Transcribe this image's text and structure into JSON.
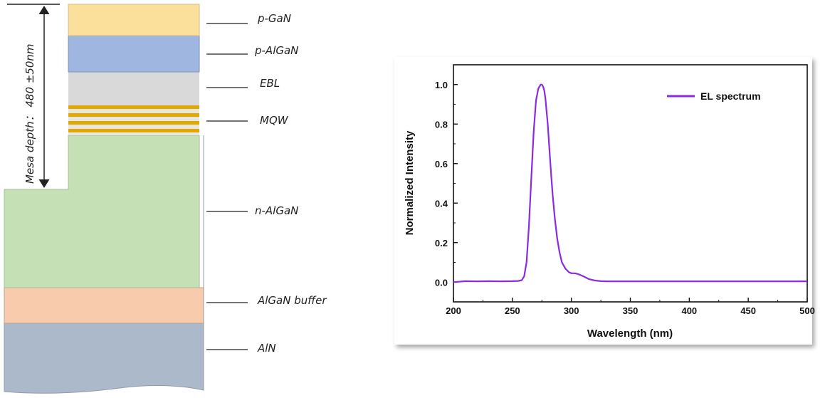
{
  "diagram": {
    "depth_annotation": "Mesa depth： 480 ±50nm",
    "layers": [
      {
        "label": "p-GaN",
        "color": "#fbe09b"
      },
      {
        "label": "p-AlGaN",
        "color": "#9fb6e0"
      },
      {
        "label": "EBL",
        "color": "#d9d9d9"
      },
      {
        "label": "MQW",
        "color": "#e0a800"
      },
      {
        "label": "n-AlGaN",
        "color": "#c5e0b4"
      },
      {
        "label": "AlGaN buffer",
        "color": "#f8cbad"
      },
      {
        "label": "AlN",
        "color": "#acb9ca"
      }
    ]
  },
  "chart_data": {
    "type": "line",
    "title": "",
    "xlabel": "Wavelength (nm)",
    "ylabel": "Normalized Intensity",
    "xlim": [
      200,
      500
    ],
    "ylim": [
      -0.1,
      1.1
    ],
    "xticks": [
      "200",
      "250",
      "300",
      "350",
      "400",
      "450",
      "500"
    ],
    "yticks": [
      "0.0",
      "0.2",
      "0.4",
      "0.6",
      "0.8",
      "1.0"
    ],
    "grid": false,
    "legend_position": "top-right",
    "series": [
      {
        "name": "EL spectrum",
        "color": "#8a2be2",
        "x": [
          200,
          210,
          220,
          230,
          240,
          250,
          255,
          258,
          260,
          262,
          264,
          266,
          268,
          270,
          272,
          274,
          275,
          276,
          277,
          278,
          280,
          282,
          284,
          286,
          288,
          290,
          292,
          295,
          298,
          300,
          303,
          306,
          310,
          315,
          320,
          325,
          330,
          340,
          350,
          400,
          450,
          500
        ],
        "y": [
          0.0,
          0.005,
          0.004,
          0.005,
          0.004,
          0.005,
          0.006,
          0.01,
          0.03,
          0.1,
          0.28,
          0.52,
          0.76,
          0.92,
          0.98,
          1.0,
          1.0,
          0.99,
          0.97,
          0.93,
          0.8,
          0.62,
          0.45,
          0.32,
          0.22,
          0.15,
          0.1,
          0.068,
          0.05,
          0.045,
          0.045,
          0.04,
          0.03,
          0.015,
          0.008,
          0.005,
          0.004,
          0.004,
          0.004,
          0.004,
          0.004,
          0.004
        ]
      }
    ]
  }
}
